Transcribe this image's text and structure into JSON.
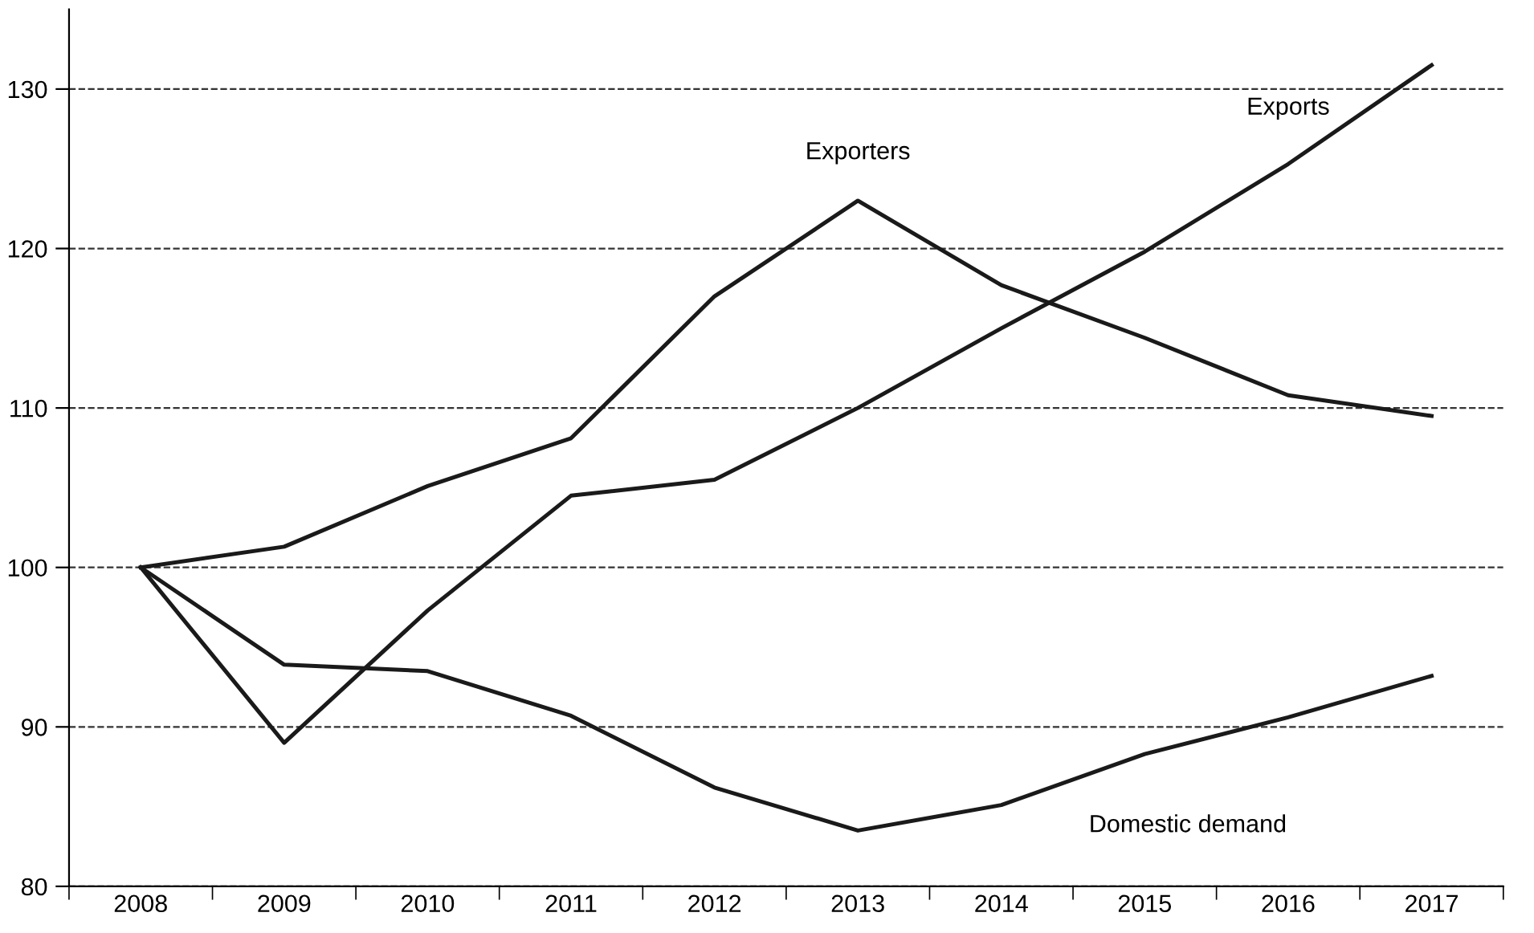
{
  "chart_data": {
    "type": "line",
    "categories": [
      "2008",
      "2009",
      "2010",
      "2011",
      "2012",
      "2013",
      "2014",
      "2015",
      "2016",
      "2017"
    ],
    "series": [
      {
        "name": "Exports",
        "color": "#1a1a1a",
        "values": [
          100,
          89,
          97.3,
          104.5,
          105.5,
          110,
          115,
          119.8,
          125.3,
          131.5
        ]
      },
      {
        "name": "Exporters",
        "color": "#1a1a1a",
        "values": [
          100,
          101.3,
          105.1,
          108.1,
          117,
          123,
          117.7,
          114.4,
          110.8,
          109.5
        ]
      },
      {
        "name": "Domestic demand",
        "color": "#1a1a1a",
        "values": [
          100,
          93.9,
          93.5,
          90.7,
          86.2,
          83.5,
          85.1,
          88.3,
          90.6,
          93.2
        ]
      }
    ],
    "ylim": [
      80,
      135
    ],
    "yticks": [
      80,
      90,
      100,
      110,
      120,
      130
    ],
    "grid": "y",
    "legend": false,
    "marker": "none",
    "line_style": "solid"
  }
}
